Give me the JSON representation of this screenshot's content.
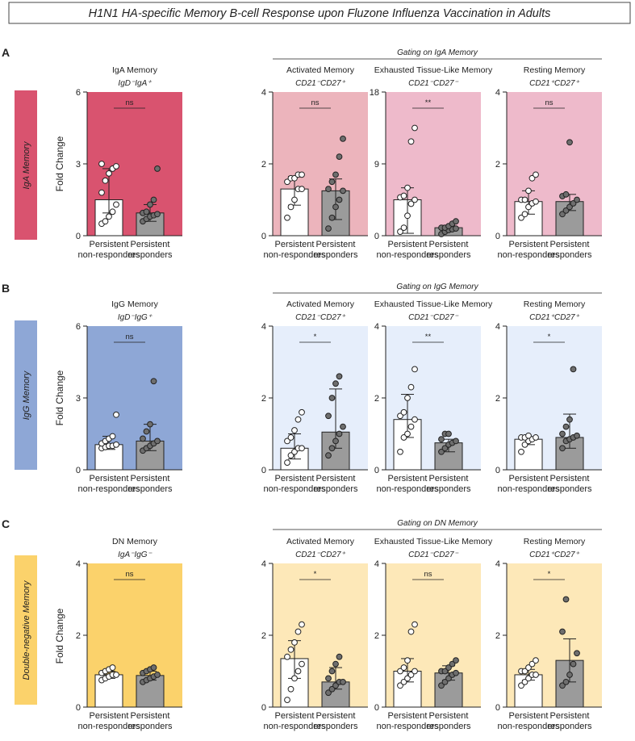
{
  "figure_title": "H1N1 HA-specific Memory B-cell Response upon Fluzone Influenza Vaccination in Adults",
  "colors": {
    "bar_left": "#ffffff",
    "bar_right": "#9b9b9b",
    "point_left": "#ffffff",
    "point_right": "#6e6e6e"
  },
  "rows": [
    {
      "letter": "A",
      "section_label": "IgA Memory",
      "section_color": "#d9536f",
      "gating_label": "Gating on IgA Memory",
      "ylabel": "Fold Change"
    },
    {
      "letter": "B",
      "section_label": "IgG Memory",
      "section_color": "#8ea7d6",
      "gating_label": "Gating on IgG Memory",
      "ylabel": "Fold Change"
    },
    {
      "letter": "C",
      "section_label": "Double-negative Memory",
      "section_color": "#fbd26b",
      "gating_label": "Gating on DN Memory",
      "ylabel": "Fold Change"
    }
  ],
  "chart_data": [
    {
      "type": "bar",
      "row": 0,
      "col": 0,
      "title": "IgA Memory",
      "subtitle": "IgD⁻IgA⁺",
      "ylabel": "Fold Change",
      "ylim": [
        0,
        6
      ],
      "yticks": [
        0,
        3,
        6
      ],
      "bg": "#d9536f",
      "categories": [
        "Persistent non-responders",
        "Persistent responders"
      ],
      "cat_lines": [
        [
          "Persistent",
          "non-responders"
        ],
        [
          "Persistent",
          "responders"
        ]
      ],
      "series": [
        {
          "mean": 1.5,
          "sd_low": 0.95,
          "sd_high": 2.8,
          "points": [
            0.5,
            0.6,
            0.8,
            1.0,
            1.3,
            1.8,
            2.3,
            2.6,
            2.8,
            2.9,
            3.0
          ]
        },
        {
          "mean": 0.95,
          "sd_low": 0.6,
          "sd_high": 1.3,
          "points": [
            0.6,
            0.7,
            0.8,
            0.85,
            0.9,
            0.95,
            1.0,
            1.3,
            1.5,
            2.8
          ]
        }
      ],
      "significance": "ns"
    },
    {
      "type": "bar",
      "row": 0,
      "col": 1,
      "title": "Activated Memory",
      "subtitle": "CD21⁻CD27⁺",
      "ylim": [
        0,
        4
      ],
      "yticks": [
        0,
        2,
        4
      ],
      "bg": "#ecb4bc",
      "categories": [
        "Persistent non-responders",
        "Persistent responders"
      ],
      "cat_lines": [
        [
          "Persistent",
          "non-responders"
        ],
        [
          "Persistent",
          "responders"
        ]
      ],
      "series": [
        {
          "mean": 1.3,
          "sd_low": 0.85,
          "sd_high": 1.65,
          "points": [
            0.5,
            0.8,
            1.0,
            1.3,
            1.3,
            1.5,
            1.6,
            1.6,
            1.7,
            1.7
          ]
        },
        {
          "mean": 1.25,
          "sd_low": 0.45,
          "sd_high": 1.58,
          "points": [
            0.2,
            0.5,
            0.8,
            1.0,
            1.25,
            1.3,
            1.5,
            1.7,
            2.2,
            2.7
          ]
        }
      ],
      "significance": "ns"
    },
    {
      "type": "bar",
      "row": 0,
      "col": 2,
      "title": "Exhausted Tissue-Like Memory",
      "subtitle": "CD21⁻CD27⁻",
      "ylim": [
        0,
        18
      ],
      "yticks": [
        0,
        9,
        18
      ],
      "bg": "#eebacb",
      "categories": [
        "Persistent non-responders",
        "Persistent responders"
      ],
      "cat_lines": [
        [
          "Persistent",
          "non-responders"
        ],
        [
          "Persistent",
          "responders"
        ]
      ],
      "series": [
        {
          "mean": 4.5,
          "sd_low": 0.3,
          "sd_high": 6.0,
          "points": [
            0.5,
            1.0,
            2.5,
            4.0,
            4.5,
            4.8,
            5.0,
            6.0,
            11.8,
            13.5
          ]
        },
        {
          "mean": 1.0,
          "sd_low": 0.7,
          "sd_high": 1.3,
          "points": [
            0.2,
            0.5,
            0.7,
            0.8,
            0.9,
            1.0,
            1.0,
            1.2,
            1.5,
            1.8
          ]
        }
      ],
      "significance": "**"
    },
    {
      "type": "bar",
      "row": 0,
      "col": 3,
      "title": "Resting Memory",
      "subtitle": "CD21⁺CD27⁺",
      "ylim": [
        0,
        4
      ],
      "yticks": [
        0,
        2,
        4
      ],
      "bg": "#eebacb",
      "categories": [
        "Persistent non-responders",
        "Persistent responders"
      ],
      "cat_lines": [
        [
          "Persistent",
          "non-responders"
        ],
        [
          "Persistent",
          "responders"
        ]
      ],
      "series": [
        {
          "mean": 0.95,
          "sd_low": 0.6,
          "sd_high": 1.25,
          "points": [
            0.5,
            0.6,
            0.8,
            0.9,
            0.95,
            1.0,
            1.0,
            1.25,
            1.6,
            1.7
          ]
        },
        {
          "mean": 0.95,
          "sd_low": 0.7,
          "sd_high": 1.15,
          "points": [
            0.6,
            0.7,
            0.8,
            0.9,
            1.0,
            1.1,
            1.15,
            2.6
          ]
        }
      ],
      "significance": "ns"
    },
    {
      "type": "bar",
      "row": 1,
      "col": 0,
      "title": "IgG Memory",
      "subtitle": "IgD⁻IgG⁺",
      "ylabel": "Fold Change",
      "ylim": [
        0,
        6
      ],
      "yticks": [
        0,
        3,
        6
      ],
      "bg": "#8ea7d6",
      "categories": [
        "Persistent non-responders",
        "Persistent responders"
      ],
      "cat_lines": [
        [
          "Persistent",
          "non-responders"
        ],
        [
          "Persistent",
          "responders"
        ]
      ],
      "series": [
        {
          "mean": 1.05,
          "sd_low": 0.85,
          "sd_high": 1.4,
          "points": [
            0.9,
            0.95,
            1.0,
            1.0,
            1.05,
            1.1,
            1.2,
            1.3,
            1.4,
            2.3
          ]
        },
        {
          "mean": 1.2,
          "sd_low": 0.8,
          "sd_high": 1.9,
          "points": [
            0.8,
            0.9,
            1.0,
            1.1,
            1.2,
            1.3,
            1.6,
            1.9,
            3.7
          ]
        }
      ],
      "significance": "ns"
    },
    {
      "type": "bar",
      "row": 1,
      "col": 1,
      "title": "Activated Memory",
      "subtitle": "CD21⁻CD27⁺",
      "ylim": [
        0,
        4
      ],
      "yticks": [
        0,
        2,
        4
      ],
      "bg": "#e6eefb",
      "categories": [
        "Persistent non-responders",
        "Persistent responders"
      ],
      "cat_lines": [
        [
          "Persistent",
          "non-responders"
        ],
        [
          "Persistent",
          "responders"
        ]
      ],
      "series": [
        {
          "mean": 0.6,
          "sd_low": 0.3,
          "sd_high": 1.0,
          "points": [
            0.2,
            0.4,
            0.5,
            0.6,
            0.6,
            0.8,
            0.9,
            1.1,
            1.4,
            1.6
          ]
        },
        {
          "mean": 1.05,
          "sd_low": 0.6,
          "sd_high": 2.25,
          "points": [
            0.4,
            0.6,
            0.8,
            1.0,
            1.2,
            1.5,
            2.0,
            2.4,
            2.6
          ]
        }
      ],
      "significance": "*"
    },
    {
      "type": "bar",
      "row": 1,
      "col": 2,
      "title": "Exhausted Tissue-Like Memory",
      "subtitle": "CD21⁻CD27⁻",
      "ylim": [
        0,
        4
      ],
      "yticks": [
        0,
        2,
        4
      ],
      "bg": "#e6eefb",
      "categories": [
        "Persistent non-responders",
        "Persistent responders"
      ],
      "cat_lines": [
        [
          "Persistent",
          "non-responders"
        ],
        [
          "Persistent",
          "responders"
        ]
      ],
      "series": [
        {
          "mean": 1.4,
          "sd_low": 0.9,
          "sd_high": 2.1,
          "points": [
            0.5,
            0.9,
            1.0,
            1.2,
            1.4,
            1.5,
            1.6,
            2.0,
            2.3,
            2.8
          ]
        },
        {
          "mean": 0.75,
          "sd_low": 0.5,
          "sd_high": 0.85,
          "points": [
            0.5,
            0.6,
            0.7,
            0.75,
            0.8,
            0.85,
            1.0,
            1.0
          ]
        }
      ],
      "significance": "**"
    },
    {
      "type": "bar",
      "row": 1,
      "col": 3,
      "title": "Resting Memory",
      "subtitle": "CD21⁺CD27⁺",
      "ylim": [
        0,
        4
      ],
      "yticks": [
        0,
        2,
        4
      ],
      "bg": "#e6eefb",
      "categories": [
        "Persistent non-responders",
        "Persistent responders"
      ],
      "cat_lines": [
        [
          "Persistent",
          "non-responders"
        ],
        [
          "Persistent",
          "responders"
        ]
      ],
      "series": [
        {
          "mean": 0.85,
          "sd_low": 0.7,
          "sd_high": 0.9,
          "points": [
            0.5,
            0.7,
            0.8,
            0.85,
            0.9,
            0.9,
            0.9,
            0.95
          ]
        },
        {
          "mean": 0.9,
          "sd_low": 0.6,
          "sd_high": 1.55,
          "points": [
            0.6,
            0.8,
            0.85,
            0.9,
            0.95,
            1.0,
            1.2,
            1.4,
            2.8
          ]
        }
      ],
      "significance": "*"
    },
    {
      "type": "bar",
      "row": 2,
      "col": 0,
      "title": "DN Memory",
      "subtitle": "IgA⁻IgG⁻",
      "ylabel": "Fold Change",
      "ylim": [
        0,
        4
      ],
      "yticks": [
        0,
        2,
        4
      ],
      "bg": "#fbd26b",
      "categories": [
        "Persistent non-responders",
        "Persistent responders"
      ],
      "cat_lines": [
        [
          "Persistent",
          "non-responders"
        ],
        [
          "Persistent",
          "responders"
        ]
      ],
      "series": [
        {
          "mean": 0.9,
          "sd_low": 0.8,
          "sd_high": 1.0,
          "points": [
            0.75,
            0.8,
            0.85,
            0.9,
            0.9,
            0.95,
            1.0,
            1.05,
            1.1
          ]
        },
        {
          "mean": 0.88,
          "sd_low": 0.75,
          "sd_high": 1.0,
          "points": [
            0.7,
            0.75,
            0.8,
            0.85,
            0.9,
            0.95,
            1.0,
            1.05,
            1.1
          ]
        }
      ],
      "significance": "ns"
    },
    {
      "type": "bar",
      "row": 2,
      "col": 1,
      "title": "Activated Memory",
      "subtitle": "CD21⁻CD27⁺",
      "ylim": [
        0,
        4
      ],
      "yticks": [
        0,
        2,
        4
      ],
      "bg": "#fde8b8",
      "categories": [
        "Persistent non-responders",
        "Persistent responders"
      ],
      "cat_lines": [
        [
          "Persistent",
          "non-responders"
        ],
        [
          "Persistent",
          "responders"
        ]
      ],
      "series": [
        {
          "mean": 1.35,
          "sd_low": 0.8,
          "sd_high": 1.85,
          "points": [
            0.2,
            0.5,
            0.8,
            1.0,
            1.2,
            1.4,
            1.6,
            1.8,
            2.1,
            2.3
          ]
        },
        {
          "mean": 0.7,
          "sd_low": 0.5,
          "sd_high": 1.1,
          "points": [
            0.4,
            0.5,
            0.6,
            0.7,
            0.7,
            0.8,
            1.0,
            1.2,
            1.4
          ]
        }
      ],
      "significance": "*"
    },
    {
      "type": "bar",
      "row": 2,
      "col": 2,
      "title": "Exhausted Tissue-Like Memory",
      "subtitle": "CD21⁻CD27⁻",
      "ylim": [
        0,
        4
      ],
      "yticks": [
        0,
        2,
        4
      ],
      "bg": "#fde8b8",
      "categories": [
        "Persistent non-responders",
        "Persistent responders"
      ],
      "cat_lines": [
        [
          "Persistent",
          "non-responders"
        ],
        [
          "Persistent",
          "responders"
        ]
      ],
      "series": [
        {
          "mean": 1.0,
          "sd_low": 0.7,
          "sd_high": 1.35,
          "points": [
            0.6,
            0.7,
            0.8,
            0.9,
            1.0,
            1.0,
            1.1,
            1.3,
            2.1,
            2.3
          ]
        },
        {
          "mean": 0.95,
          "sd_low": 0.75,
          "sd_high": 1.15,
          "points": [
            0.6,
            0.7,
            0.8,
            0.9,
            0.95,
            1.0,
            1.0,
            1.1,
            1.2,
            1.3
          ]
        }
      ],
      "significance": "ns"
    },
    {
      "type": "bar",
      "row": 2,
      "col": 3,
      "title": "Resting Memory",
      "subtitle": "CD21⁺CD27⁺",
      "ylim": [
        0,
        4
      ],
      "yticks": [
        0,
        2,
        4
      ],
      "bg": "#fde8b8",
      "categories": [
        "Persistent non-responders",
        "Persistent responders"
      ],
      "cat_lines": [
        [
          "Persistent",
          "non-responders"
        ],
        [
          "Persistent",
          "responders"
        ]
      ],
      "series": [
        {
          "mean": 0.9,
          "sd_low": 0.75,
          "sd_high": 1.05,
          "points": [
            0.6,
            0.7,
            0.8,
            0.9,
            0.9,
            1.0,
            1.0,
            1.1,
            1.2,
            1.3
          ]
        },
        {
          "mean": 1.3,
          "sd_low": 0.7,
          "sd_high": 1.9,
          "points": [
            0.6,
            0.7,
            0.9,
            1.2,
            1.5,
            2.1,
            3.0
          ]
        }
      ],
      "significance": "*"
    }
  ]
}
